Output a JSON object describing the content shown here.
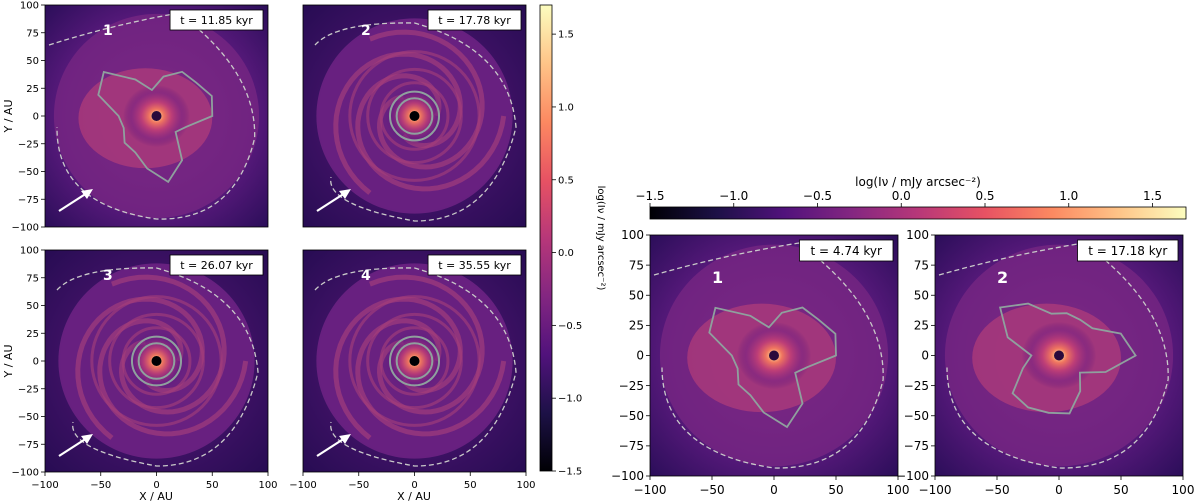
{
  "colormap": [
    "#000004",
    "#1d1147",
    "#51127c",
    "#832681",
    "#b73779",
    "#e75263",
    "#fc8961",
    "#fec488",
    "#fcfdbf"
  ],
  "chart_data": [
    {
      "type": "heatmap",
      "group": "left-grid",
      "panels": [
        {
          "id": "1",
          "time_label": "t = 11.85 kyr",
          "morphology": "irregular",
          "arrow": true
        },
        {
          "id": "2",
          "time_label": "t = 17.78 kyr",
          "morphology": "spiral",
          "arrow": true
        },
        {
          "id": "3",
          "time_label": "t = 26.07 kyr",
          "morphology": "spiral",
          "arrow": true
        },
        {
          "id": "4",
          "time_label": "t = 35.55 kyr",
          "morphology": "spiral",
          "arrow": true
        }
      ],
      "xlabel": "X / AU",
      "ylabel": "Y / AU",
      "xlim": [
        -100,
        100
      ],
      "ylim": [
        -100,
        100
      ],
      "x_ticks": [
        -100,
        -50,
        0,
        50,
        100
      ],
      "y_ticks": [
        100,
        75,
        50,
        25,
        0,
        -25,
        -50,
        -75,
        -100
      ],
      "colorbar": {
        "orientation": "vertical",
        "label": "log(Iν / mJy arcsec⁻²)",
        "range": [
          -1.5,
          1.7
        ],
        "ticks": [
          1.5,
          1.0,
          0.5,
          0.0,
          -0.5,
          -1.0,
          -1.5
        ]
      }
    },
    {
      "type": "heatmap",
      "group": "right-row",
      "panels": [
        {
          "id": "1",
          "time_label": "t = 4.74 kyr",
          "morphology": "irregular",
          "arrow": false
        },
        {
          "id": "2",
          "time_label": "t = 17.18 kyr",
          "morphology": "irregular",
          "arrow": false
        }
      ],
      "xlim": [
        -100,
        100
      ],
      "ylim": [
        -100,
        100
      ],
      "x_ticks": [
        -100,
        -50,
        0,
        50,
        100
      ],
      "y_ticks": [
        100,
        75,
        50,
        25,
        0,
        -25,
        -50,
        -75,
        -100
      ],
      "colorbar": {
        "orientation": "horizontal",
        "label": "log(Iν / mJy arcsec⁻²)",
        "range": [
          -1.5,
          1.7
        ],
        "ticks": [
          -1.5,
          -1.0,
          -0.5,
          0.0,
          0.5,
          1.0,
          1.5
        ]
      }
    }
  ]
}
